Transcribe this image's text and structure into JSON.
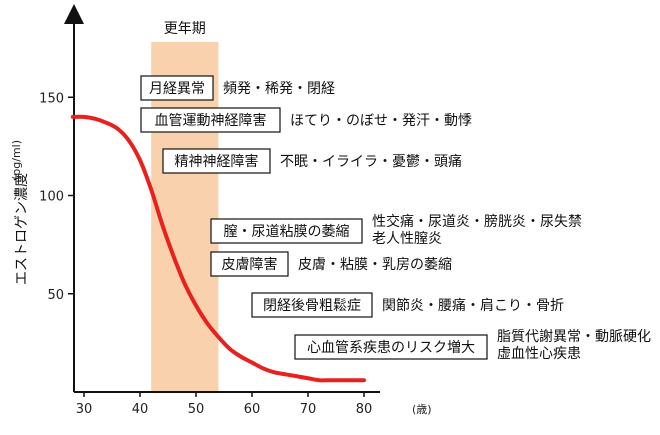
{
  "chart_data": {
    "type": "line",
    "title": "",
    "ylabel": "エストロゲン濃度",
    "yunit": "(pg/ml)",
    "xunit": "(歳)",
    "xlim": [
      28,
      80
    ],
    "ylim": [
      0,
      175
    ],
    "xticks": [
      30,
      40,
      50,
      60,
      70,
      80
    ],
    "yticks": [
      50,
      100,
      150
    ],
    "grid": false,
    "series": [
      {
        "color": "#e8201e",
        "x": [
          28,
          30,
          32,
          34,
          36,
          38,
          40,
          42,
          44,
          46,
          48,
          50,
          52,
          54,
          56,
          58,
          60,
          62,
          64,
          66,
          68,
          70,
          72,
          74,
          76,
          78,
          80
        ],
        "y": [
          140,
          140,
          139,
          137,
          134,
          128,
          118,
          103,
          85,
          69,
          55,
          44,
          35,
          28,
          22,
          18,
          15,
          12,
          10,
          9,
          8,
          7,
          6,
          6,
          6,
          6,
          6
        ]
      }
    ],
    "band": {
      "label": "更年期",
      "x_range": [
        42,
        54
      ],
      "color": "#f9d1ac"
    },
    "annotations": [
      {
        "box": "月経異常",
        "text": [
          "頻発・稀発・閉経"
        ]
      },
      {
        "box": "血管運動神経障害",
        "text": [
          "ほてり・のぼせ・発汗・動悸"
        ]
      },
      {
        "box": "精神神経障害",
        "text": [
          "不眠・イライラ・憂鬱・頭痛"
        ]
      },
      {
        "box": "膣・尿道粘膜の萎縮",
        "text": [
          "性交痛・尿道炎・膀胱炎・尿失禁",
          "老人性膣炎"
        ]
      },
      {
        "box": "皮膚障害",
        "text": [
          "皮膚・粘膜・乳房の萎縮"
        ]
      },
      {
        "box": "閉経後骨粗鬆症",
        "text": [
          "関節炎・腰痛・肩こり・骨折"
        ]
      },
      {
        "box": "心血管系疾患のリスク増大",
        "text": [
          "脂質代謝異常・動脈硬化",
          "虚血性心疾患"
        ]
      }
    ]
  }
}
